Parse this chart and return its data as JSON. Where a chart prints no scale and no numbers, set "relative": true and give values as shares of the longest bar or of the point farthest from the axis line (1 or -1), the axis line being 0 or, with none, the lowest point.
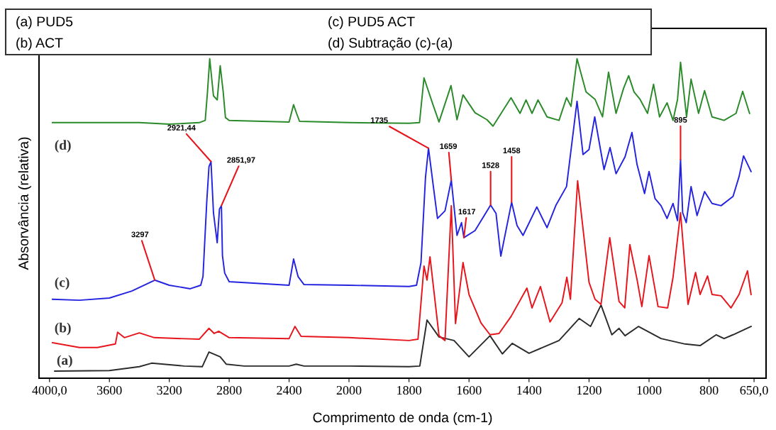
{
  "chart_data": [
    {
      "type": "line",
      "relative": true,
      "ylabel": "Absorvância (relativa)",
      "legend": false,
      "grid": false,
      "xlim": [
        4070,
        2000
      ],
      "xticks": [
        {
          "value": 4000,
          "label": "4000,0"
        },
        3600,
        3200,
        2800,
        2400
      ],
      "series": [
        {
          "name": "(a)",
          "color": "#2b2b2b",
          "x": [
            3965,
            3600,
            3400,
            3318,
            3100,
            2980,
            2935,
            2860,
            2820,
            2700,
            2400,
            2352,
            2300,
            2000
          ],
          "values": [
            0.022,
            0.024,
            0.036,
            0.047,
            0.038,
            0.036,
            0.082,
            0.067,
            0.044,
            0.038,
            0.038,
            0.044,
            0.038,
            0.038
          ]
        },
        {
          "name": "(b)",
          "color": "#e8141b",
          "x": [
            3980,
            3800,
            3680,
            3560,
            3545,
            3500,
            3400,
            3300,
            3000,
            2935,
            2900,
            2870,
            2800,
            2400,
            2361,
            2320,
            2000
          ],
          "values": [
            0.111,
            0.096,
            0.096,
            0.107,
            0.144,
            0.127,
            0.142,
            0.127,
            0.122,
            0.156,
            0.14,
            0.147,
            0.127,
            0.124,
            0.162,
            0.131,
            0.127
          ]
        },
        {
          "name": "(c)",
          "color": "#2424e0",
          "x": [
            3980,
            3800,
            3600,
            3450,
            3297,
            3200,
            3060,
            2990,
            2975,
            2950,
            2935,
            2921.44,
            2905,
            2880,
            2865,
            2851.97,
            2845,
            2830,
            2800,
            2400,
            2370,
            2340,
            2300,
            2000
          ],
          "values": [
            0.247,
            0.244,
            0.251,
            0.273,
            0.307,
            0.291,
            0.28,
            0.291,
            0.318,
            0.551,
            0.662,
            0.678,
            0.518,
            0.424,
            0.529,
            0.54,
            0.384,
            0.329,
            0.302,
            0.291,
            0.373,
            0.318,
            0.293,
            0.291
          ]
        },
        {
          "name": "(d)",
          "color": "#2a8a2a",
          "x": [
            3980,
            3800,
            3600,
            3400,
            3200,
            3000,
            2960,
            2945,
            2930,
            2905,
            2880,
            2860,
            2840,
            2825,
            2800,
            2400,
            2370,
            2350,
            2330,
            2000
          ],
          "values": [
            0.8,
            0.8,
            0.8,
            0.8,
            0.795,
            0.8,
            0.807,
            0.896,
            1.0,
            0.884,
            0.871,
            0.978,
            0.896,
            0.816,
            0.807,
            0.802,
            0.856,
            0.829,
            0.804,
            0.8
          ]
        }
      ],
      "annotations": [
        {
          "text": "3297",
          "x": 3297,
          "y": 0.307
        },
        {
          "text": "2921,44",
          "x": 2921.44,
          "y": 0.678
        },
        {
          "text": "2851,97",
          "x": 2851.97,
          "y": 0.54
        },
        "(a) PUD5",
        "(b) ACT",
        "(c) PUD5 ACT",
        "(d) Subtração (c)-(a)"
      ]
    },
    {
      "type": "line",
      "relative": true,
      "xlabel": "Comprimento de onda (cm-1)",
      "legend": false,
      "grid": false,
      "xlim": [
        2000,
        610
      ],
      "xticks": [
        2000,
        1800,
        1600,
        1400,
        1200,
        1000,
        800,
        {
          "value": 650,
          "label": "650,0"
        }
      ],
      "series": [
        {
          "color": "#2b2b2b",
          "x": [
            2000,
            1800,
            1764,
            1740,
            1700,
            1650,
            1600,
            1530,
            1489,
            1456,
            1400,
            1350,
            1300,
            1233,
            1195,
            1160,
            1124,
            1100,
            1080,
            1035,
            960,
            880,
            830,
            776,
            750,
            720,
            660
          ],
          "values": [
            0.038,
            0.036,
            0.038,
            0.182,
            0.129,
            0.118,
            0.067,
            0.133,
            0.076,
            0.109,
            0.078,
            0.098,
            0.118,
            0.187,
            0.162,
            0.229,
            0.136,
            0.156,
            0.133,
            0.162,
            0.124,
            0.107,
            0.102,
            0.136,
            0.124,
            0.136,
            0.162
          ]
        },
        {
          "color": "#e8141b",
          "x": [
            2000,
            1800,
            1770,
            1750,
            1740,
            1730,
            1700,
            1680,
            1659,
            1645,
            1620,
            1600,
            1560,
            1530,
            1500,
            1460,
            1407,
            1390,
            1362,
            1330,
            1290,
            1274,
            1262,
            1238,
            1200,
            1180,
            1160,
            1131,
            1100,
            1081,
            1064,
            1040,
            1024,
            1000,
            970,
            938,
            920,
            895,
            870,
            845,
            830,
            805,
            790,
            760,
            727,
            700,
            672,
            660
          ],
          "values": [
            0.127,
            0.118,
            0.122,
            0.351,
            0.307,
            0.38,
            0.133,
            0.118,
            0.54,
            0.171,
            0.362,
            0.262,
            0.173,
            0.136,
            0.14,
            0.193,
            0.282,
            0.22,
            0.287,
            0.176,
            0.236,
            0.316,
            0.247,
            0.618,
            0.3,
            0.247,
            0.231,
            0.44,
            0.24,
            0.22,
            0.418,
            0.309,
            0.224,
            0.384,
            0.224,
            0.22,
            0.316,
            0.518,
            0.231,
            0.331,
            0.262,
            0.32,
            0.262,
            0.258,
            0.22,
            0.262,
            0.336,
            0.262
          ]
        },
        {
          "color": "#2424e0",
          "x": [
            2000,
            1800,
            1775,
            1760,
            1745,
            1735,
            1720,
            1705,
            1680,
            1659,
            1640,
            1625,
            1617,
            1580,
            1528,
            1510,
            1494,
            1458,
            1440,
            1420,
            1374,
            1340,
            1310,
            1275,
            1240,
            1220,
            1200,
            1181,
            1150,
            1130,
            1110,
            1080,
            1057,
            1040,
            1015,
            1000,
            980,
            960,
            940,
            920,
            905,
            895,
            888,
            876,
            860,
            840,
            815,
            790,
            760,
            720,
            700,
            685,
            660
          ],
          "values": [
            0.291,
            0.287,
            0.291,
            0.362,
            0.629,
            0.72,
            0.609,
            0.5,
            0.524,
            0.62,
            0.447,
            0.487,
            0.44,
            0.462,
            0.542,
            0.516,
            0.382,
            0.551,
            0.478,
            0.447,
            0.536,
            0.471,
            0.542,
            0.6,
            0.867,
            0.7,
            0.716,
            0.818,
            0.653,
            0.722,
            0.64,
            0.693,
            0.769,
            0.669,
            0.578,
            0.647,
            0.562,
            0.54,
            0.5,
            0.547,
            0.493,
            0.684,
            0.518,
            0.487,
            0.6,
            0.509,
            0.584,
            0.547,
            0.54,
            0.569,
            0.631,
            0.696,
            0.647
          ]
        },
        {
          "color": "#2a8a2a",
          "x": [
            2000,
            1800,
            1765,
            1750,
            1720,
            1700,
            1660,
            1640,
            1620,
            1580,
            1540,
            1520,
            1460,
            1430,
            1410,
            1390,
            1370,
            1340,
            1300,
            1275,
            1260,
            1240,
            1210,
            1180,
            1155,
            1135,
            1110,
            1085,
            1068,
            1050,
            1030,
            1005,
            985,
            965,
            940,
            920,
            905,
            895,
            875,
            860,
            835,
            815,
            790,
            750,
            710,
            688,
            665
          ],
          "values": [
            0.8,
            0.798,
            0.8,
            0.94,
            0.856,
            0.802,
            0.916,
            0.809,
            0.887,
            0.831,
            0.809,
            0.789,
            0.878,
            0.829,
            0.871,
            0.829,
            0.871,
            0.818,
            0.807,
            0.878,
            0.851,
            1.0,
            0.896,
            0.873,
            0.818,
            0.958,
            0.829,
            0.907,
            0.947,
            0.896,
            0.873,
            0.829,
            0.92,
            0.818,
            0.862,
            0.807,
            0.873,
            0.989,
            0.818,
            0.936,
            0.829,
            0.9,
            0.818,
            0.807,
            0.829,
            0.898,
            0.829
          ]
        }
      ],
      "annotations": [
        {
          "text": "1735",
          "x": 1735,
          "y": 0.72
        },
        {
          "text": "1659",
          "x": 1659,
          "y": 0.62
        },
        {
          "text": "1617",
          "x": 1617,
          "y": 0.44
        },
        {
          "text": "1528",
          "x": 1528,
          "y": 0.542
        },
        {
          "text": "1458",
          "x": 1458,
          "y": 0.551
        },
        {
          "text": "895",
          "x": 895,
          "y": 0.684
        }
      ]
    }
  ]
}
